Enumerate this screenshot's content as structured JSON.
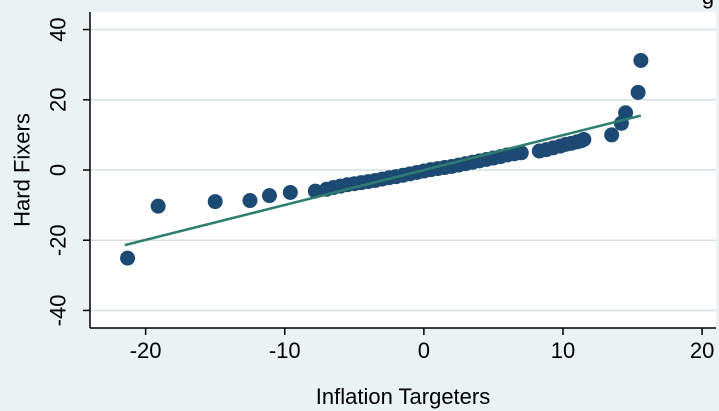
{
  "chart_data": {
    "type": "scatter",
    "title_fragment": "g",
    "xlabel": "Inflation Targeters",
    "ylabel": "Hard Fixers",
    "xlim": [
      -24,
      21
    ],
    "ylim": [
      -45,
      45
    ],
    "xticks": [
      -20,
      -10,
      0,
      10,
      20
    ],
    "yticks": [
      -40,
      -20,
      0,
      20,
      40
    ],
    "grid": "horizontal",
    "colors": {
      "background": "#eaf2f3",
      "plot": "#ffffff",
      "points": "#1c4a72",
      "fit_line": "#2e7d6f",
      "grid": "#d6e0e3"
    },
    "fit_line": {
      "x": [
        -21.5,
        15.6
      ],
      "y": [
        -21.4,
        15.5
      ]
    },
    "points": [
      {
        "x": -21.3,
        "y": -25.1
      },
      {
        "x": -19.1,
        "y": -10.3
      },
      {
        "x": -15.0,
        "y": -9.0
      },
      {
        "x": -12.5,
        "y": -8.7
      },
      {
        "x": -11.1,
        "y": -7.3
      },
      {
        "x": -9.6,
        "y": -6.4
      },
      {
        "x": -7.8,
        "y": -6.0
      },
      {
        "x": -7.0,
        "y": -5.5
      },
      {
        "x": -6.5,
        "y": -5.0
      },
      {
        "x": -6.0,
        "y": -4.6
      },
      {
        "x": -5.5,
        "y": -4.2
      },
      {
        "x": -5.0,
        "y": -3.9
      },
      {
        "x": -4.5,
        "y": -3.6
      },
      {
        "x": -4.0,
        "y": -3.3
      },
      {
        "x": -3.5,
        "y": -3.0
      },
      {
        "x": -3.0,
        "y": -2.6
      },
      {
        "x": -2.5,
        "y": -2.2
      },
      {
        "x": -2.0,
        "y": -1.9
      },
      {
        "x": -1.5,
        "y": -1.5
      },
      {
        "x": -1.0,
        "y": -1.1
      },
      {
        "x": -0.5,
        "y": -0.7
      },
      {
        "x": 0.0,
        "y": -0.3
      },
      {
        "x": 0.5,
        "y": 0.1
      },
      {
        "x": 1.0,
        "y": 0.4
      },
      {
        "x": 1.5,
        "y": 0.7
      },
      {
        "x": 2.0,
        "y": 1.0
      },
      {
        "x": 2.5,
        "y": 1.4
      },
      {
        "x": 3.0,
        "y": 1.8
      },
      {
        "x": 3.5,
        "y": 2.2
      },
      {
        "x": 4.0,
        "y": 2.6
      },
      {
        "x": 4.5,
        "y": 3.0
      },
      {
        "x": 5.0,
        "y": 3.4
      },
      {
        "x": 5.5,
        "y": 3.8
      },
      {
        "x": 6.0,
        "y": 4.3
      },
      {
        "x": 6.5,
        "y": 4.6
      },
      {
        "x": 7.0,
        "y": 4.9
      },
      {
        "x": 8.3,
        "y": 5.4
      },
      {
        "x": 8.8,
        "y": 5.8
      },
      {
        "x": 9.3,
        "y": 6.3
      },
      {
        "x": 9.8,
        "y": 6.8
      },
      {
        "x": 10.2,
        "y": 7.3
      },
      {
        "x": 10.6,
        "y": 7.6
      },
      {
        "x": 11.0,
        "y": 8.0
      },
      {
        "x": 11.3,
        "y": 8.3
      },
      {
        "x": 11.5,
        "y": 8.7
      },
      {
        "x": 13.5,
        "y": 10.0
      },
      {
        "x": 14.2,
        "y": 13.3
      },
      {
        "x": 14.5,
        "y": 16.3
      },
      {
        "x": 15.4,
        "y": 22.1
      },
      {
        "x": 15.6,
        "y": 31.2
      }
    ]
  }
}
